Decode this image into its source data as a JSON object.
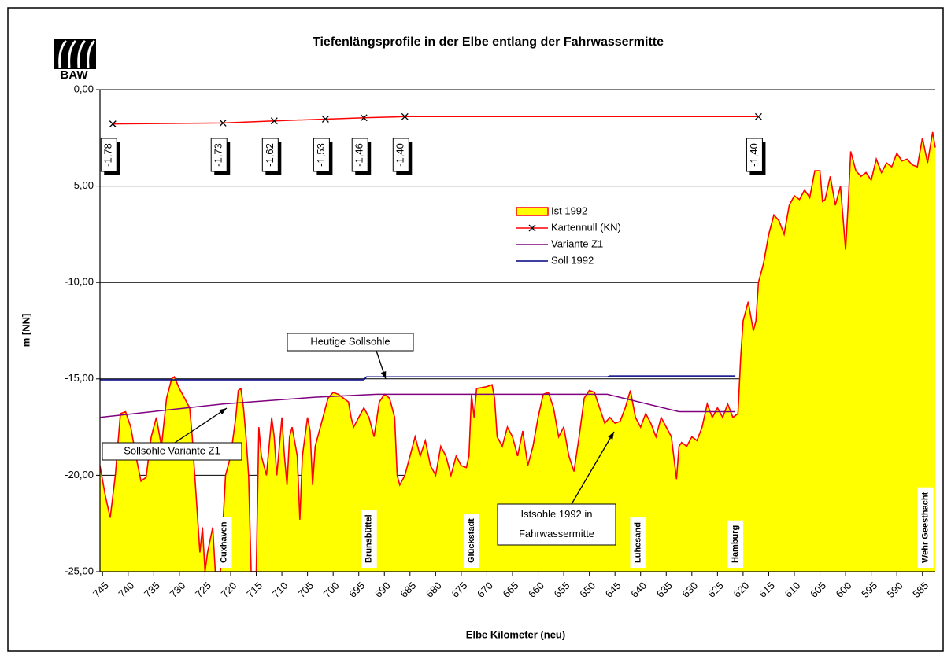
{
  "chart_data": {
    "type": "area",
    "logo": "BAW",
    "title": "Tiefenlängsprofile in der Elbe entlang der Fahrwassermitte",
    "y_label": "m [NN]",
    "x_label": "Elbe Kilometer (neu)",
    "xlim": [
      745.5,
      582.5
    ],
    "ylim": [
      -25,
      0
    ],
    "xticks": [
      745,
      740,
      735,
      730,
      725,
      720,
      715,
      710,
      705,
      700,
      695,
      690,
      685,
      680,
      675,
      670,
      665,
      660,
      655,
      650,
      645,
      640,
      635,
      630,
      625,
      620,
      615,
      610,
      605,
      600,
      595,
      590,
      585
    ],
    "yticks": [
      {
        "value": -25,
        "label": "-25,00"
      },
      {
        "value": -20,
        "label": "-20,00"
      },
      {
        "value": -15,
        "label": "-15,00"
      },
      {
        "value": -10,
        "label": "-10,00"
      },
      {
        "value": -5,
        "label": "-5,00"
      },
      {
        "value": 0,
        "label": "0,00"
      }
    ],
    "grid": true,
    "series": [
      {
        "name": "Ist 1992",
        "color": "#ff0000",
        "fill": "#ffff00",
        "x": [
          745.5,
          744.5,
          743.5,
          742.5,
          741.5,
          740.5,
          739.5,
          738.5,
          737.5,
          736.5,
          735.5,
          734.5,
          733.5,
          732.5,
          731.5,
          731,
          730,
          729,
          728,
          727.5,
          727,
          726.5,
          726,
          725.5,
          725,
          724.5,
          723.5,
          723,
          722,
          721,
          720,
          719,
          718.5,
          718,
          717.5,
          717,
          716.5,
          716,
          715,
          714.5,
          714,
          713,
          712,
          711.5,
          711,
          710,
          709.5,
          709,
          708.5,
          708,
          707,
          706.5,
          706,
          705,
          704.5,
          704,
          703.5,
          703,
          702,
          701,
          700,
          699,
          698,
          697,
          696.5,
          696,
          695,
          694,
          693,
          692,
          691,
          690,
          689,
          688,
          687.5,
          687,
          686,
          685,
          684,
          683,
          682,
          681,
          680,
          679,
          678,
          677,
          676,
          675,
          674,
          673.5,
          673,
          672.5,
          672,
          670,
          669,
          668.5,
          668,
          667,
          666,
          665,
          664,
          663,
          662,
          661,
          660,
          659,
          658,
          657,
          656,
          655,
          654,
          653,
          652,
          651,
          650,
          649,
          648,
          647,
          646,
          645,
          644,
          643,
          642,
          641,
          640,
          639,
          638,
          637,
          636,
          635,
          634,
          633,
          632.5,
          632,
          631,
          630,
          629,
          628,
          627,
          626,
          625,
          624,
          623,
          622,
          621,
          620.5,
          620,
          619,
          618,
          617.5,
          617,
          616,
          615,
          614,
          613,
          612,
          611,
          610,
          609,
          608,
          607,
          606,
          605,
          604.5,
          604,
          603,
          602,
          601,
          600,
          599.5,
          599,
          598,
          597,
          596,
          595,
          594,
          593,
          592,
          591,
          590,
          589,
          588,
          587,
          586,
          585,
          584,
          583,
          582.5
        ],
        "values": [
          -19.5,
          -21,
          -22.2,
          -20,
          -16.8,
          -16.7,
          -17.5,
          -19,
          -20.3,
          -20.1,
          -18,
          -17,
          -18.5,
          -16,
          -15,
          -14.9,
          -15.5,
          -16,
          -16.5,
          -18,
          -20,
          -22,
          -24,
          -22.7,
          -25,
          -24,
          -22.7,
          -25,
          -25,
          -20,
          -19,
          -17,
          -15.6,
          -15.5,
          -16.5,
          -18,
          -20,
          -25,
          -25,
          -17.5,
          -19,
          -20,
          -17,
          -18,
          -20,
          -17,
          -19,
          -20.5,
          -18,
          -17.5,
          -19,
          -22.3,
          -19,
          -17,
          -17.7,
          -20.5,
          -18.5,
          -18,
          -17,
          -16,
          -15.7,
          -15.8,
          -16,
          -16.2,
          -17,
          -17.5,
          -17,
          -16.5,
          -17,
          -18,
          -16.2,
          -15.8,
          -16,
          -17,
          -20,
          -20.5,
          -20,
          -19,
          -18,
          -19,
          -18.2,
          -19.5,
          -20,
          -18.5,
          -19,
          -20,
          -19,
          -19.5,
          -19.6,
          -19,
          -15.8,
          -17,
          -15.5,
          -15.4,
          -15.3,
          -16,
          -18,
          -18.5,
          -17.5,
          -18,
          -19,
          -17.7,
          -19.5,
          -18.5,
          -17,
          -15.8,
          -15.7,
          -16.5,
          -18,
          -17.5,
          -19,
          -19.8,
          -18,
          -16,
          -15.6,
          -15.7,
          -16.5,
          -17.3,
          -17,
          -17.3,
          -17.2,
          -16.5,
          -15.6,
          -17,
          -17.5,
          -16.8,
          -17.3,
          -18,
          -17,
          -17.5,
          -18,
          -20.2,
          -18.5,
          -18.3,
          -18.5,
          -18,
          -18.2,
          -17.5,
          -16.3,
          -17,
          -16.5,
          -17,
          -16.3,
          -17,
          -16.8,
          -14,
          -12,
          -11,
          -12.5,
          -12,
          -10,
          -9,
          -7.5,
          -6.5,
          -6.8,
          -7.5,
          -6,
          -5.5,
          -5.7,
          -5.2,
          -5.6,
          -4.2,
          -4.2,
          -5.8,
          -5.7,
          -4.5,
          -6,
          -5,
          -8.3,
          -6,
          -3.2,
          -4.2,
          -4.5,
          -4.3,
          -4.7,
          -3.6,
          -4.3,
          -3.8,
          -4,
          -3.3,
          -3.7,
          -3.6,
          -3.9,
          -4,
          -2.5,
          -3.8,
          -2.2,
          -3
        ]
      },
      {
        "name": "Kartennull (KN)",
        "color": "#ff0000",
        "marker": "x",
        "x": [
          743,
          721.5,
          711.5,
          701.5,
          694,
          686,
          617
        ],
        "values": [
          -1.78,
          -1.73,
          -1.62,
          -1.53,
          -1.46,
          -1.4,
          -1.4
        ],
        "value_labels": [
          "-1,78",
          "-1,73",
          "-1,62",
          "-1,53",
          "-1,46",
          "-1,40",
          "-1,40"
        ]
      },
      {
        "name": "Variante Z1",
        "color": "#800080",
        "x": [
          745.5,
          721.5,
          703.5,
          691.5,
          646.5,
          632.5,
          621.5
        ],
        "values": [
          -17.0,
          -16.3,
          -15.95,
          -15.8,
          -15.8,
          -16.7,
          -16.7
        ]
      },
      {
        "name": "Soll 1992",
        "color": "#000080",
        "x": [
          745.5,
          694,
          693.5,
          646.5,
          646,
          621.5
        ],
        "values": [
          -15.05,
          -15.05,
          -14.9,
          -14.9,
          -14.85,
          -14.85
        ]
      }
    ],
    "annotations": [
      "Heutige Sollsohle",
      "Sollsohle Variante Z1",
      "Istsohle 1992 in",
      "Fahrwassermitte"
    ],
    "places": [
      {
        "label": "Cuxhaven",
        "x": 721.3
      },
      {
        "label": "Brunsbüttel",
        "x": 693
      },
      {
        "label": "Glückstadt",
        "x": 673
      },
      {
        "label": "Lühesand",
        "x": 640.5
      },
      {
        "label": "Hamburg",
        "x": 621.5
      },
      {
        "label": "Wehr Geesthacht",
        "x": 584.4
      }
    ]
  }
}
